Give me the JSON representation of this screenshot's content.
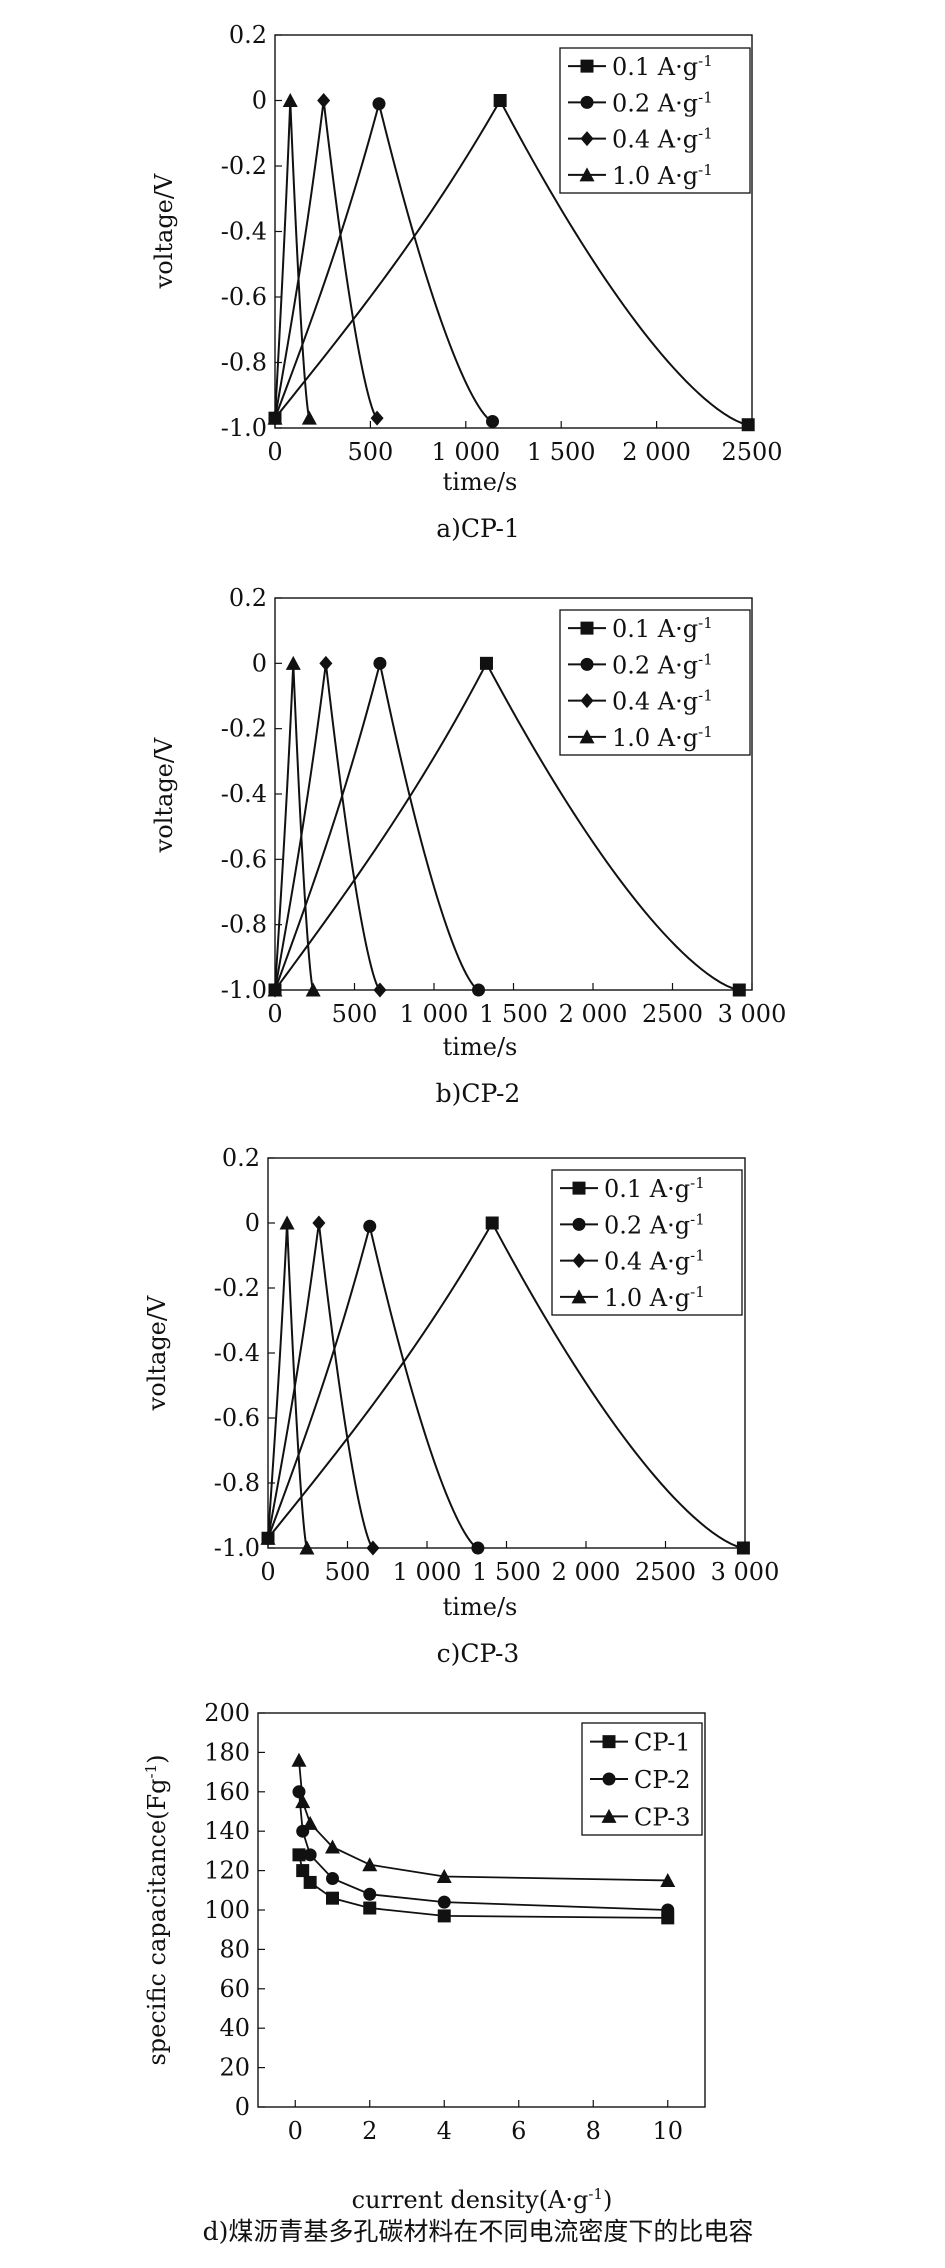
{
  "chart_data": [
    {
      "type": "line",
      "caption": "a)CP-1",
      "xlabel": "time/s",
      "ylabel": "voltage/V",
      "xlim": [
        0,
        2500
      ],
      "ylim": [
        -1.0,
        0.2
      ],
      "x_ticks": [
        {
          "value": 0,
          "label": "0"
        },
        {
          "value": 500,
          "label": "500"
        },
        {
          "value": 1000,
          "label": "1 000"
        },
        {
          "value": 1500,
          "label": "1 500"
        },
        {
          "value": 2000,
          "label": "2 000"
        },
        {
          "value": 2500,
          "label": "2500"
        }
      ],
      "y_ticks": [
        {
          "value": 0.2,
          "label": "0.2"
        },
        {
          "value": 0,
          "label": "0"
        },
        {
          "value": -0.2,
          "label": "-0.2"
        },
        {
          "value": -0.4,
          "label": "-0.4"
        },
        {
          "value": -0.6,
          "label": "-0.6"
        },
        {
          "value": -0.8,
          "label": "-0.8"
        },
        {
          "value": -1.0,
          "label": "-1.0"
        }
      ],
      "legend": "top-right",
      "series": [
        {
          "name": "0.1 A·g",
          "sup": "-1",
          "marker": "square",
          "charge_start": [
            0,
            -0.97
          ],
          "peak": [
            1180,
            0
          ],
          "discharge_end": [
            2480,
            -0.99
          ]
        },
        {
          "name": "0.2 A·g",
          "sup": "-1",
          "marker": "circle",
          "charge_start": [
            0,
            -0.97
          ],
          "peak": [
            545,
            -0.01
          ],
          "discharge_end": [
            1140,
            -0.98
          ]
        },
        {
          "name": "0.4 A·g",
          "sup": "-1",
          "marker": "diamond",
          "charge_start": [
            0,
            -0.97
          ],
          "peak": [
            255,
            0
          ],
          "discharge_end": [
            535,
            -0.97
          ]
        },
        {
          "name": "1.0 A·g",
          "sup": "-1",
          "marker": "triangle",
          "charge_start": [
            0,
            -0.97
          ],
          "peak": [
            80,
            0
          ],
          "discharge_end": [
            180,
            -0.97
          ]
        }
      ]
    },
    {
      "type": "line",
      "caption": "b)CP-2",
      "xlabel": "time/s",
      "ylabel": "voltage/V",
      "xlim": [
        0,
        3000
      ],
      "ylim": [
        -1.0,
        0.2
      ],
      "x_ticks": [
        {
          "value": 0,
          "label": "0"
        },
        {
          "value": 500,
          "label": "500"
        },
        {
          "value": 1000,
          "label": "1 000"
        },
        {
          "value": 1500,
          "label": "1 500"
        },
        {
          "value": 2000,
          "label": "2 000"
        },
        {
          "value": 2500,
          "label": "2500"
        },
        {
          "value": 3000,
          "label": "3 000"
        }
      ],
      "y_ticks": [
        {
          "value": 0.2,
          "label": "0.2"
        },
        {
          "value": 0,
          "label": "0"
        },
        {
          "value": -0.2,
          "label": "-0.2"
        },
        {
          "value": -0.4,
          "label": "-0.4"
        },
        {
          "value": -0.6,
          "label": "-0.6"
        },
        {
          "value": -0.8,
          "label": "-0.8"
        },
        {
          "value": -1.0,
          "label": "-1.0"
        }
      ],
      "legend": "top-right",
      "series": [
        {
          "name": "0.1 A·g",
          "sup": "-1",
          "marker": "square",
          "charge_start": [
            0,
            -1.0
          ],
          "peak": [
            1330,
            0
          ],
          "discharge_end": [
            2920,
            -1.0
          ]
        },
        {
          "name": "0.2 A·g",
          "sup": "-1",
          "marker": "circle",
          "charge_start": [
            0,
            -1.0
          ],
          "peak": [
            660,
            0
          ],
          "discharge_end": [
            1280,
            -1.0
          ]
        },
        {
          "name": "0.4 A·g",
          "sup": "-1",
          "marker": "diamond",
          "charge_start": [
            0,
            -1.0
          ],
          "peak": [
            320,
            0
          ],
          "discharge_end": [
            660,
            -1.0
          ]
        },
        {
          "name": "1.0 A·g",
          "sup": "-1",
          "marker": "triangle",
          "charge_start": [
            0,
            -1.0
          ],
          "peak": [
            115,
            0
          ],
          "discharge_end": [
            240,
            -1.0
          ]
        }
      ]
    },
    {
      "type": "line",
      "caption": "c)CP-3",
      "xlabel": "time/s",
      "ylabel": "voltage/V",
      "xlim": [
        0,
        3000
      ],
      "ylim": [
        -1.0,
        0.2
      ],
      "x_ticks": [
        {
          "value": 0,
          "label": "0"
        },
        {
          "value": 500,
          "label": "500"
        },
        {
          "value": 1000,
          "label": "1 000"
        },
        {
          "value": 1500,
          "label": "1 500"
        },
        {
          "value": 2000,
          "label": "2 000"
        },
        {
          "value": 2500,
          "label": "2500"
        },
        {
          "value": 3000,
          "label": "3 000"
        }
      ],
      "y_ticks": [
        {
          "value": 0.2,
          "label": "0.2"
        },
        {
          "value": 0,
          "label": "0"
        },
        {
          "value": -0.2,
          "label": "-0.2"
        },
        {
          "value": -0.4,
          "label": "-0.4"
        },
        {
          "value": -0.6,
          "label": "-0.6"
        },
        {
          "value": -0.8,
          "label": "-0.8"
        },
        {
          "value": -1.0,
          "label": "-1.0"
        }
      ],
      "legend": "top-right",
      "series": [
        {
          "name": "0.1 A·g",
          "sup": "-1",
          "marker": "square",
          "charge_start": [
            0,
            -0.97
          ],
          "peak": [
            1410,
            0
          ],
          "discharge_end": [
            2990,
            -1.0
          ]
        },
        {
          "name": "0.2 A·g",
          "sup": "-1",
          "marker": "circle",
          "charge_start": [
            0,
            -0.97
          ],
          "peak": [
            640,
            -0.01
          ],
          "discharge_end": [
            1320,
            -1.0
          ]
        },
        {
          "name": "0.4 A·g",
          "sup": "-1",
          "marker": "diamond",
          "charge_start": [
            0,
            -0.97
          ],
          "peak": [
            320,
            0
          ],
          "discharge_end": [
            660,
            -1.0
          ]
        },
        {
          "name": "1.0 A·g",
          "sup": "-1",
          "marker": "triangle",
          "charge_start": [
            0,
            -0.97
          ],
          "peak": [
            120,
            0
          ],
          "discharge_end": [
            245,
            -1.0
          ]
        }
      ]
    },
    {
      "type": "line",
      "caption": "d)煤沥青基多孔碳材料在不同电流密度下的比电容",
      "xlabel": "current density(A·g",
      "xlabel_sup": "-1",
      "xlabel_tail": ")",
      "ylabel": "specific capacitance(Fg",
      "ylabel_sup": "-1",
      "ylabel_tail": ")",
      "xlim": [
        -1,
        11
      ],
      "ylim": [
        0,
        200
      ],
      "x_ticks": [
        {
          "value": 0,
          "label": "0"
        },
        {
          "value": 2,
          "label": "2"
        },
        {
          "value": 4,
          "label": "4"
        },
        {
          "value": 6,
          "label": "6"
        },
        {
          "value": 8,
          "label": "8"
        },
        {
          "value": 10,
          "label": "10"
        }
      ],
      "y_ticks": [
        {
          "value": 0,
          "label": "0"
        },
        {
          "value": 20,
          "label": "20"
        },
        {
          "value": 40,
          "label": "40"
        },
        {
          "value": 60,
          "label": "60"
        },
        {
          "value": 80,
          "label": "80"
        },
        {
          "value": 100,
          "label": "100"
        },
        {
          "value": 120,
          "label": "120"
        },
        {
          "value": 140,
          "label": "140"
        },
        {
          "value": 160,
          "label": "160"
        },
        {
          "value": 180,
          "label": "180"
        },
        {
          "value": 200,
          "label": "200"
        }
      ],
      "legend": "top-right",
      "x": [
        0.1,
        0.2,
        0.4,
        1.0,
        2.0,
        4.0,
        10.0
      ],
      "series": [
        {
          "name": "CP-1",
          "marker": "square",
          "values": [
            128,
            120,
            114,
            106,
            101,
            97,
            96
          ]
        },
        {
          "name": "CP-2",
          "marker": "circle",
          "values": [
            160,
            140,
            128,
            116,
            108,
            104,
            100
          ]
        },
        {
          "name": "CP-3",
          "marker": "triangle",
          "values": [
            176,
            155,
            144,
            132,
            123,
            117,
            115
          ]
        }
      ]
    }
  ]
}
